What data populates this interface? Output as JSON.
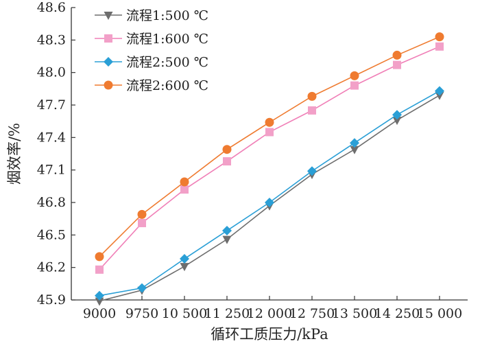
{
  "chart_data": {
    "type": "line",
    "title": "",
    "xlabel": "循环工质压力/kPa",
    "ylabel": "烟效率/%",
    "categories": [
      "9000",
      "9750",
      "10 500",
      "11 250",
      "12 000",
      "12 750",
      "13 500",
      "14 250",
      "15 000"
    ],
    "x": [
      9000,
      9750,
      10500,
      11250,
      12000,
      12750,
      13500,
      14250,
      15000
    ],
    "ylim": [
      45.9,
      48.6
    ],
    "yticks": [
      "45.9",
      "46.2",
      "46.5",
      "46.8",
      "47.1",
      "47.4",
      "47.7",
      "48.0",
      "48.3",
      "48.6"
    ],
    "legend_position": "top-left",
    "grid": false,
    "series": [
      {
        "name": "流程1:500 ℃",
        "marker": "triangle-down",
        "line_color": "#6d6d6d",
        "marker_color": "#6d6d6d",
        "values": [
          45.89,
          45.99,
          46.21,
          46.46,
          46.77,
          47.06,
          47.29,
          47.56,
          47.79
        ]
      },
      {
        "name": "流程1:600 ℃",
        "marker": "square",
        "line_color": "#f07fb7",
        "marker_color": "#f2a0c8",
        "values": [
          46.18,
          46.61,
          46.92,
          47.18,
          47.45,
          47.65,
          47.88,
          48.07,
          48.24
        ]
      },
      {
        "name": "流程2:500 ℃",
        "marker": "diamond",
        "line_color": "#2a9fd6",
        "marker_color": "#2a9fd6",
        "values": [
          45.94,
          46.01,
          46.28,
          46.54,
          46.8,
          47.09,
          47.35,
          47.61,
          47.83
        ]
      },
      {
        "name": "流程2:600 ℃",
        "marker": "circle",
        "line_color": "#ef7b30",
        "marker_color": "#ef7b30",
        "values": [
          46.3,
          46.69,
          46.99,
          47.29,
          47.54,
          47.78,
          47.97,
          48.16,
          48.33
        ]
      }
    ]
  }
}
